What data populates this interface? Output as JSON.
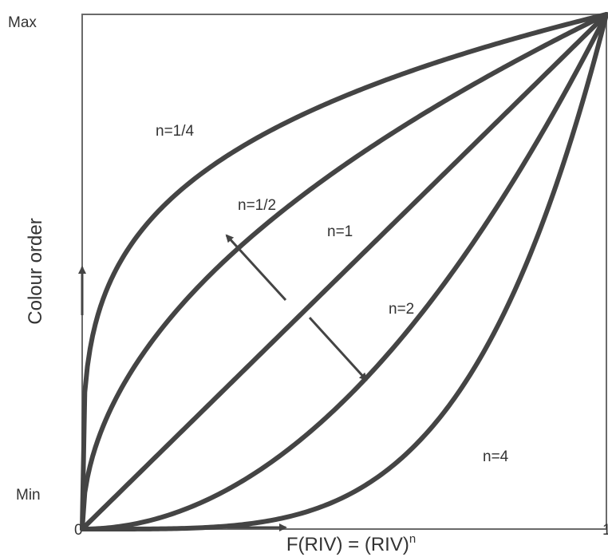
{
  "chart_data": {
    "type": "line",
    "title": "",
    "xlabel_text": "F(RIV) = (RIV)",
    "xlabel_superscript": "n",
    "ylabel": "Colour order",
    "xlim": [
      0,
      1
    ],
    "ylim": [
      0,
      1
    ],
    "x_ticks": [
      {
        "value": 0,
        "label": "0"
      },
      {
        "value": 1,
        "label": "1"
      }
    ],
    "y_ticks": [
      {
        "value": 0,
        "label": "Min"
      },
      {
        "value": 1,
        "label": "Max"
      }
    ],
    "grid": false,
    "legend": "none",
    "curve_formula": "y = x^n",
    "series": [
      {
        "name": "n=1/4",
        "exponent": 0.25
      },
      {
        "name": "n=1/2",
        "exponent": 0.5
      },
      {
        "name": "n=1",
        "exponent": 1
      },
      {
        "name": "n=2",
        "exponent": 2
      },
      {
        "name": "n=4",
        "exponent": 4
      }
    ],
    "annotations": [
      "arrow pointing toward smaller n (upper left)",
      "arrow pointing toward larger n (lower right)"
    ]
  },
  "colors": {
    "curve": "#444444",
    "frame": "#6a6a6a",
    "text": "#333333",
    "background": "#ffffff"
  }
}
